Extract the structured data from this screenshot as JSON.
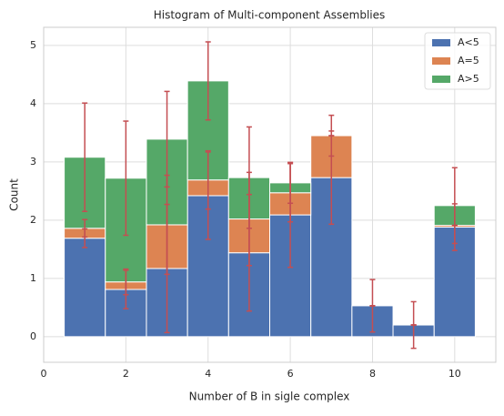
{
  "chart_data": {
    "type": "stacked-histogram",
    "title": "Histogram of Multi-component Assemblies",
    "x_label": "Number of B in sigle complex",
    "y_label": "Count",
    "bins": [
      0.5,
      1.5,
      2.5,
      3.5,
      4.5,
      5.5,
      6.5,
      7.5,
      8.5,
      9.5,
      10.5
    ],
    "series": [
      {
        "name": "A<5",
        "color": "#4c72b0",
        "values": [
          1.69,
          0.81,
          1.17,
          2.42,
          1.44,
          2.09,
          2.73,
          0.53,
          0.2,
          1.88
        ],
        "errors": [
          0.16,
          0.33,
          1.1,
          0.75,
          1.0,
          0.9,
          0.8,
          0.45,
          0.4,
          0.4
        ]
      },
      {
        "name": "A=5",
        "color": "#dd8452",
        "values": [
          0.17,
          0.13,
          0.75,
          0.27,
          0.58,
          0.38,
          0.72,
          0,
          0,
          0.03
        ],
        "errors": [
          0.15,
          0.22,
          0.85,
          0.5,
          0.8,
          0.5,
          0.35,
          0,
          0,
          0
        ]
      },
      {
        "name": "A>5",
        "color": "#55a868",
        "values": [
          1.22,
          1.78,
          1.47,
          1.7,
          0.71,
          0.17,
          0,
          0,
          0,
          0.34
        ],
        "errors": [
          0.93,
          0.98,
          0.82,
          0.67,
          0.87,
          0.35,
          0,
          0,
          0,
          0.65
        ]
      }
    ],
    "error_color": "#c44e52",
    "xlim": [
      0,
      11
    ],
    "xticks": [
      0,
      2,
      4,
      6,
      8,
      10
    ],
    "ylim": [
      -0.44,
      5.31
    ],
    "yticks": [
      0,
      1,
      2,
      3,
      4,
      5
    ],
    "grid": true,
    "legend": "upper right"
  }
}
